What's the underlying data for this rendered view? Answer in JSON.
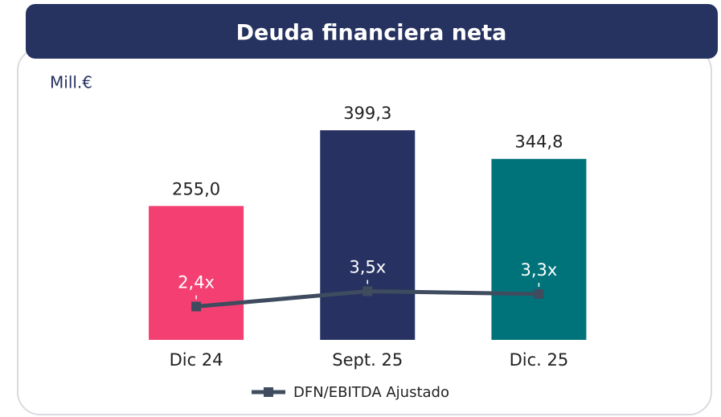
{
  "chart_data": {
    "type": "bar",
    "title": "Deuda financiera neta",
    "unit_label": "Mill.€",
    "categories": [
      "Dic 24",
      "Sept. 25",
      "Dic. 25"
    ],
    "ylim": [
      0,
      450
    ],
    "y2lim": [
      0,
      17
    ],
    "series": [
      {
        "type": "bar",
        "colors": [
          "#f43f72",
          "#283262",
          "#00737a"
        ],
        "values": [
          255.0,
          399.3,
          344.8
        ],
        "value_labels": [
          "255,0",
          "399,3",
          "344,8"
        ]
      },
      {
        "type": "line",
        "name": "DFN/EBITDA Ajustado",
        "axis": "y2",
        "color": "#3f4b5e",
        "values": [
          2.4,
          3.5,
          3.3
        ],
        "value_labels": [
          "2,4x",
          "3,5x",
          "3,3x"
        ]
      }
    ]
  }
}
